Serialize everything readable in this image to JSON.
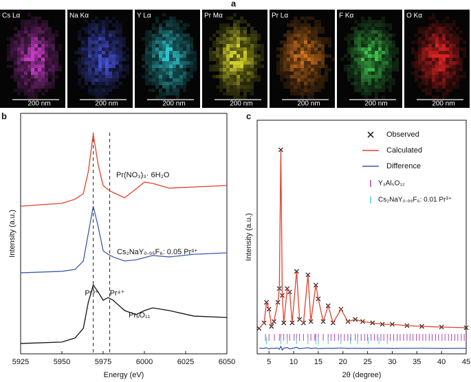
{
  "panel_a": {
    "letter": "a",
    "tiles": [
      {
        "label": "Cs Lα",
        "scale": "200 nm",
        "color": "#c33cc3"
      },
      {
        "label": "Na Kα",
        "scale": "200 nm",
        "color": "#4452d6"
      },
      {
        "label": "Y Lα",
        "scale": "200 nm",
        "color": "#2fc4cc"
      },
      {
        "label": "Pr Mα",
        "scale": "200 nm",
        "color": "#cfcf2c"
      },
      {
        "label": "Pr Lα",
        "scale": "200 nm",
        "color": "#d4761e"
      },
      {
        "label": "F Kα",
        "scale": "200 nm",
        "color": "#3fc04a"
      },
      {
        "label": "O Kα",
        "scale": "200 nm",
        "color": "#d62222"
      }
    ]
  },
  "chart_data": [
    {
      "type": "line",
      "letter": "b",
      "xlabel": "Energy (eV)",
      "ylabel": "Intensity (a.u.)",
      "x": [
        5925,
        5950,
        5958,
        5963,
        5966,
        5969,
        5972,
        5975,
        5978,
        5981,
        5988,
        5995,
        6000,
        6005,
        6015,
        6030,
        6050
      ],
      "series": [
        {
          "name": "Pr(NO₃)₃· 6H₂O",
          "color": "#e0402c",
          "values": [
            6.14,
            6.26,
            6.43,
            6.66,
            7.57,
            9.14,
            7.86,
            7.0,
            6.83,
            6.71,
            6.49,
            6.86,
            7.14,
            7.09,
            6.89,
            6.94,
            7.0
          ]
        },
        {
          "name": "Cs₂NaY₀.₉₅F₆: 0.05 Pr³⁺",
          "color": "#3a5aa8",
          "values": [
            3.37,
            3.43,
            3.51,
            3.86,
            5.0,
            6.14,
            5.29,
            4.29,
            4.14,
            4.03,
            3.86,
            3.91,
            4.0,
            4.09,
            4.03,
            4.14,
            4.2
          ]
        },
        {
          "name": "Pr₆O₁₁",
          "color": "#111111",
          "values": [
            0.43,
            0.49,
            0.66,
            1.06,
            2.14,
            2.86,
            2.57,
            2.23,
            2.34,
            2.23,
            1.8,
            1.63,
            1.8,
            1.91,
            1.8,
            1.57,
            1.51
          ]
        }
      ],
      "vlines": [
        5969,
        5979
      ],
      "vline_labels": [
        "Pr³⁺",
        "Pr⁴⁺"
      ],
      "xlim": [
        5925,
        6050
      ],
      "xticks": [
        5925,
        5950,
        5975,
        6000,
        6025,
        6050
      ],
      "ylim": [
        0,
        10
      ]
    },
    {
      "type": "line",
      "letter": "c",
      "xlabel": "2θ (degree)",
      "ylabel": "Intensity (a.u.)",
      "x": [
        3,
        4,
        4.5,
        5,
        5.5,
        6,
        6.8,
        7.1,
        7.4,
        7.7,
        8,
        8.7,
        9.2,
        9.7,
        10.6,
        11.2,
        12,
        12.9,
        13.5,
        14.5,
        15,
        16,
        17,
        18,
        19.6,
        21,
        22.5,
        24,
        26,
        28,
        30,
        33,
        36,
        40,
        45
      ],
      "series": [
        {
          "name": "Observed",
          "color": "#111111",
          "marker": "x",
          "values": [
            10.88,
            13.24,
            22.06,
            19.12,
            11.76,
            13.82,
            22.06,
            27.94,
            87.35,
            25.0,
            13.24,
            27.94,
            26.47,
            13.24,
            35.29,
            14.71,
            13.24,
            33.82,
            13.82,
            29.41,
            23.53,
            13.82,
            20.59,
            13.24,
            19.12,
            13.82,
            14.71,
            13.82,
            13.24,
            12.65,
            12.65,
            12.06,
            11.76,
            11.47,
            11.18
          ]
        },
        {
          "name": "Calculated",
          "color": "#e0402c",
          "values": [
            10.88,
            13.24,
            22.06,
            19.12,
            11.76,
            13.82,
            22.06,
            27.94,
            87.35,
            25.0,
            13.24,
            27.94,
            26.47,
            13.24,
            35.29,
            14.71,
            13.24,
            33.82,
            13.82,
            29.41,
            23.53,
            13.82,
            20.59,
            13.24,
            19.12,
            13.82,
            14.71,
            13.82,
            13.24,
            12.65,
            12.65,
            12.06,
            11.76,
            11.47,
            11.18
          ]
        },
        {
          "name": "Difference",
          "color": "#3a5aa8",
          "values": [
            2.4,
            2.3,
            2.6,
            2.1,
            2.4,
            2.3,
            2.5,
            2.0,
            3.2,
            1.6,
            2.4,
            2.7,
            2.1,
            2.3,
            2.8,
            2.2,
            2.4,
            2.6,
            2.3,
            2.5,
            2.2,
            2.3,
            2.4,
            2.3,
            2.5,
            2.3,
            2.4,
            2.3,
            2.35,
            2.4,
            2.3,
            2.35,
            2.4,
            2.3,
            2.35
          ]
        }
      ],
      "reflections": [
        {
          "name": "Y₃Al₅O₁₂",
          "color": "#b040b0",
          "positions": [
            4.3,
            5.0,
            6.1,
            7.1,
            7.4,
            8.0,
            8.7,
            9.2,
            10.1,
            10.6,
            11.2,
            12.0,
            12.9,
            13.5,
            14.3,
            14.5,
            15.0,
            16.0,
            17.0,
            17.6,
            18.3,
            19.1,
            19.6,
            20.3,
            21.0,
            21.6,
            22.5,
            23.0,
            23.7,
            24.4,
            25.0,
            25.7,
            26.4,
            27.0,
            27.7,
            28.3,
            29.0,
            29.6,
            30.3,
            31.0,
            31.6,
            32.3,
            33.0,
            33.6,
            34.2,
            34.9,
            35.5,
            36.2,
            36.8,
            37.5,
            38.1,
            38.8,
            39.4,
            40.1,
            40.7,
            41.4,
            42.0,
            42.7,
            43.3,
            44.0,
            44.6
          ]
        },
        {
          "name": "Cs₂NaY₀.₉₉F₆: 0.01 Pr³⁺",
          "color": "#4fc6dc",
          "positions": [
            4.5,
            7.4,
            8.7,
            10.6,
            12.9,
            14.5,
            15.0,
            17.0,
            19.6,
            21.5,
            23.0,
            25.1,
            27.3,
            29.0
          ]
        }
      ],
      "xlim": [
        2.6,
        45
      ],
      "xticks": [
        5,
        10,
        15,
        20,
        25,
        30,
        35,
        40,
        45
      ],
      "ylim": [
        0,
        100
      ]
    }
  ]
}
